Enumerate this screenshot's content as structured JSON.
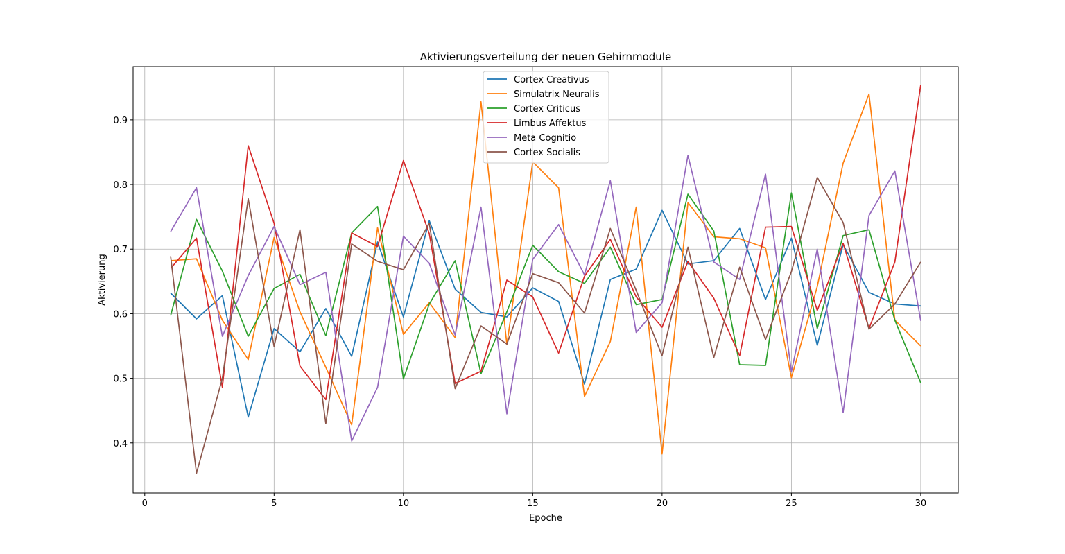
{
  "chart_data": {
    "type": "line",
    "title": "Aktivierungsverteilung der neuen Gehirnmodule",
    "xlabel": "Epoche",
    "ylabel": "Aktivierung",
    "xlim": [
      -0.45,
      31.45
    ],
    "ylim": [
      0.3225,
      0.9825
    ],
    "xticks": [
      0,
      5,
      10,
      15,
      20,
      25,
      30
    ],
    "xtick_labels": [
      "0",
      "5",
      "10",
      "15",
      "20",
      "25",
      "30"
    ],
    "yticks": [
      0.4,
      0.5,
      0.6,
      0.7,
      0.8,
      0.9
    ],
    "ytick_labels": [
      "0.4",
      "0.5",
      "0.6",
      "0.7",
      "0.8",
      "0.9"
    ],
    "grid": true,
    "legend_position": "upper center",
    "x": [
      1,
      2,
      3,
      4,
      5,
      6,
      7,
      8,
      9,
      10,
      11,
      12,
      13,
      14,
      15,
      16,
      17,
      18,
      19,
      20,
      21,
      22,
      23,
      24,
      25,
      26,
      27,
      28,
      29,
      30
    ],
    "series": [
      {
        "name": "Cortex Creativus",
        "color": "#1f77b4",
        "values": [
          0.632,
          0.592,
          0.628,
          0.44,
          0.577,
          0.541,
          0.608,
          0.534,
          0.711,
          0.595,
          0.744,
          0.638,
          0.602,
          0.595,
          0.64,
          0.619,
          0.491,
          0.653,
          0.669,
          0.76,
          0.677,
          0.682,
          0.732,
          0.622,
          0.717,
          0.551,
          0.707,
          0.633,
          0.615,
          0.612
        ]
      },
      {
        "name": "Simulatrix Neuralis",
        "color": "#ff7f0e",
        "values": [
          0.682,
          0.685,
          0.59,
          0.529,
          0.718,
          0.603,
          0.517,
          0.428,
          0.733,
          0.568,
          0.617,
          0.563,
          0.928,
          0.552,
          0.835,
          0.795,
          0.472,
          0.557,
          0.765,
          0.383,
          0.772,
          0.719,
          0.716,
          0.702,
          0.501,
          0.642,
          0.833,
          0.94,
          0.59,
          0.55
        ]
      },
      {
        "name": "Cortex Criticus",
        "color": "#2ca02c",
        "values": [
          0.597,
          0.746,
          0.666,
          0.565,
          0.639,
          0.661,
          0.566,
          0.725,
          0.766,
          0.499,
          0.615,
          0.682,
          0.507,
          0.603,
          0.706,
          0.665,
          0.647,
          0.703,
          0.614,
          0.622,
          0.785,
          0.728,
          0.521,
          0.52,
          0.787,
          0.577,
          0.721,
          0.73,
          0.59,
          0.493
        ]
      },
      {
        "name": "Limbus Affektus",
        "color": "#d62728",
        "values": [
          0.67,
          0.717,
          0.486,
          0.86,
          0.74,
          0.519,
          0.467,
          0.725,
          0.704,
          0.837,
          0.724,
          0.492,
          0.511,
          0.652,
          0.626,
          0.539,
          0.658,
          0.715,
          0.626,
          0.579,
          0.681,
          0.624,
          0.535,
          0.734,
          0.735,
          0.605,
          0.709,
          0.577,
          0.68,
          0.954
        ]
      },
      {
        "name": "Meta Cognitio",
        "color": "#9467bd",
        "values": [
          0.727,
          0.795,
          0.565,
          0.659,
          0.735,
          0.645,
          0.664,
          0.403,
          0.486,
          0.72,
          0.678,
          0.567,
          0.765,
          0.445,
          0.684,
          0.738,
          0.66,
          0.806,
          0.571,
          0.617,
          0.845,
          0.68,
          0.653,
          0.816,
          0.51,
          0.7,
          0.447,
          0.752,
          0.821,
          0.589
        ]
      },
      {
        "name": "Cortex Socialis",
        "color": "#8c564b",
        "values": [
          0.689,
          0.353,
          0.5,
          0.778,
          0.549,
          0.73,
          0.43,
          0.708,
          0.681,
          0.668,
          0.74,
          0.484,
          0.581,
          0.553,
          0.662,
          0.648,
          0.601,
          0.732,
          0.636,
          0.535,
          0.703,
          0.532,
          0.672,
          0.56,
          0.665,
          0.811,
          0.741,
          0.576,
          0.615,
          0.68
        ]
      }
    ]
  }
}
